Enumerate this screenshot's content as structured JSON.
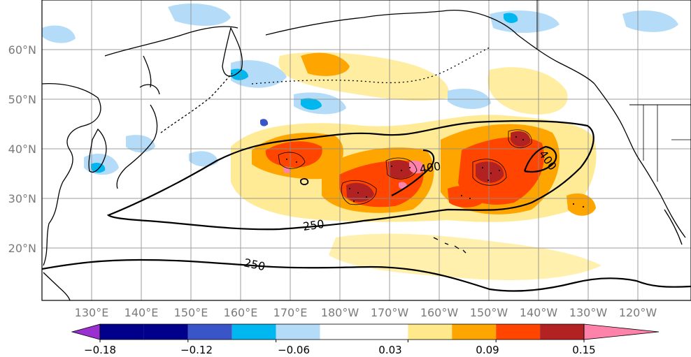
{
  "map": {
    "lon_labels": [
      "130°E",
      "140°E",
      "150°E",
      "160°E",
      "170°E",
      "180°W",
      "170°W",
      "160°W",
      "150°W",
      "140°W",
      "130°W",
      "120°W"
    ],
    "lat_labels": [
      "60°N",
      "50°N",
      "40°N",
      "30°N",
      "20°N"
    ],
    "contour_labels": [
      "400",
      "400",
      "250",
      "250"
    ],
    "contour_color": "#000000",
    "grid_color": "#8c8c8c",
    "coast_color": "#000000"
  },
  "colorbar": {
    "tick_labels": [
      "−0.18",
      "−0.12",
      "−0.06",
      "0.03",
      "0.09",
      "0.15"
    ],
    "bins": [
      {
        "lo": -0.21,
        "hi": -0.18,
        "color": "#9b30d0"
      },
      {
        "lo": -0.18,
        "hi": -0.15,
        "color": "#00008b"
      },
      {
        "lo": -0.15,
        "hi": -0.12,
        "color": "#00008b"
      },
      {
        "lo": -0.12,
        "hi": -0.09,
        "color": "#3a55c8"
      },
      {
        "lo": -0.09,
        "hi": -0.06,
        "color": "#00b7f0"
      },
      {
        "lo": -0.06,
        "hi": -0.03,
        "color": "#b4dcf8"
      },
      {
        "lo": -0.03,
        "hi": 0.03,
        "color": "#ffffff"
      },
      {
        "lo": 0.03,
        "hi": 0.06,
        "color": "#ffe98a"
      },
      {
        "lo": 0.06,
        "hi": 0.09,
        "color": "#ffa500"
      },
      {
        "lo": 0.09,
        "hi": 0.12,
        "color": "#ff4500"
      },
      {
        "lo": 0.12,
        "hi": 0.15,
        "color": "#b22222"
      },
      {
        "lo": 0.15,
        "hi": 0.18,
        "color": "#ff82ab"
      }
    ]
  }
}
